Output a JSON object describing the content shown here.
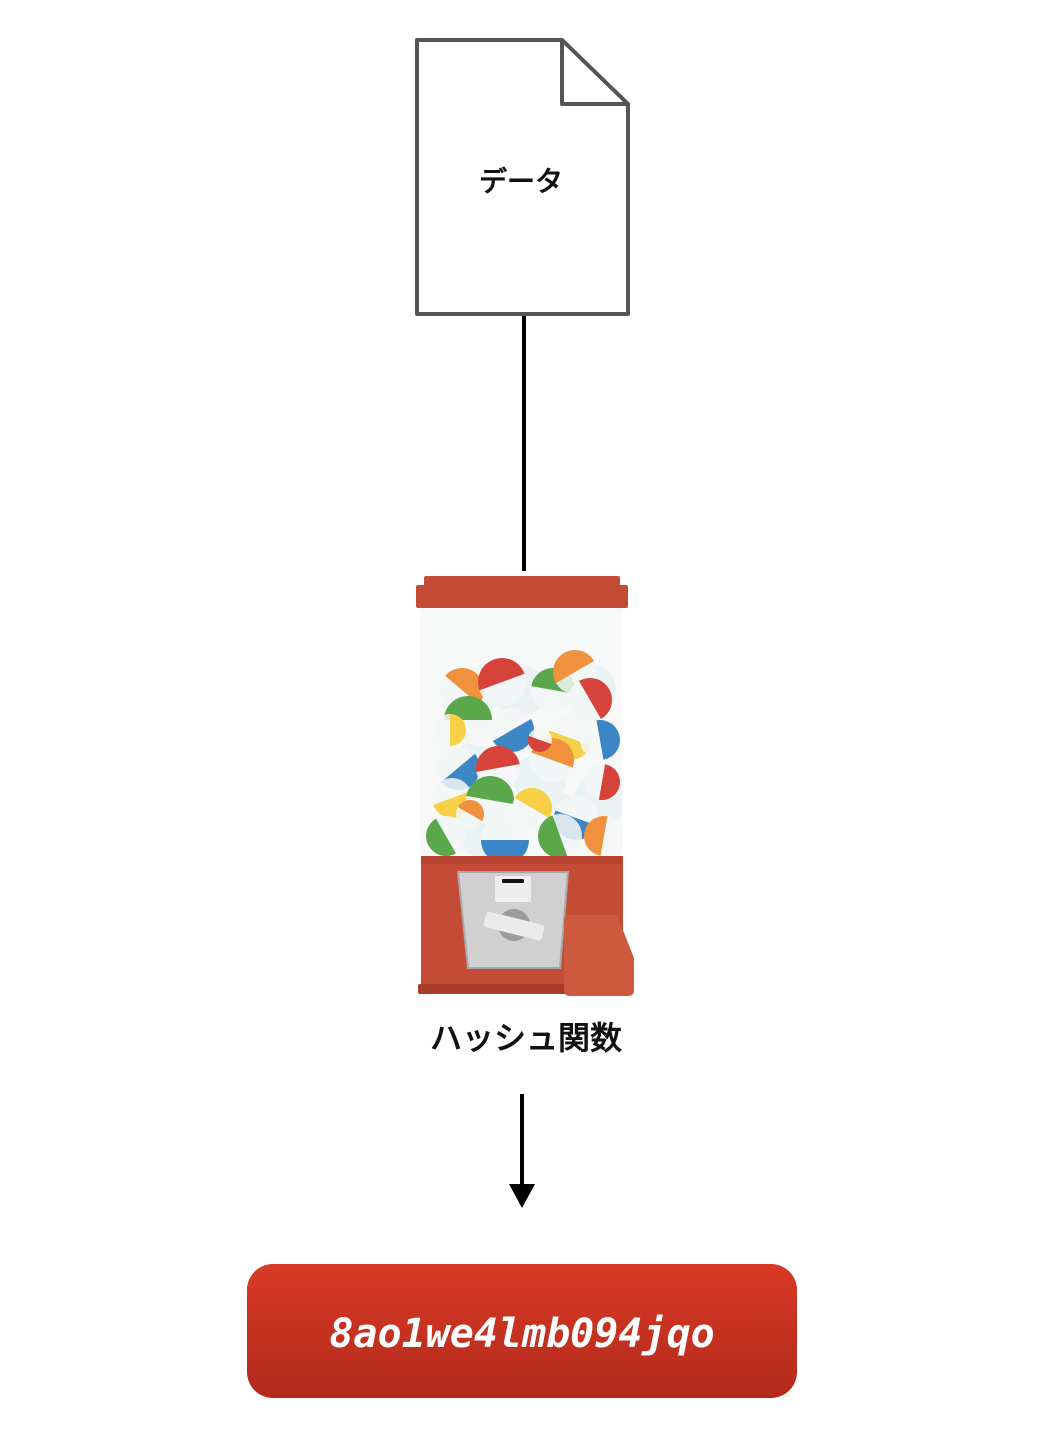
{
  "document": {
    "label": "データ",
    "icon": "document-icon"
  },
  "hash_function": {
    "label": "ハッシュ関数",
    "icon": "gumball-machine-icon",
    "colors": {
      "body": "#c44c36",
      "body_dark": "#a93d2a",
      "panel": "#d0d0d0",
      "glass": "#f7f8f8"
    },
    "capsule_colors": [
      "#f0913e",
      "#d6433a",
      "#5aa74c",
      "#3c86c6",
      "#f7d047"
    ]
  },
  "output": {
    "hash_value": "8ao1we4lmb094jqo",
    "colors": {
      "top": "#d83a25",
      "bottom": "#b32a1c"
    }
  }
}
